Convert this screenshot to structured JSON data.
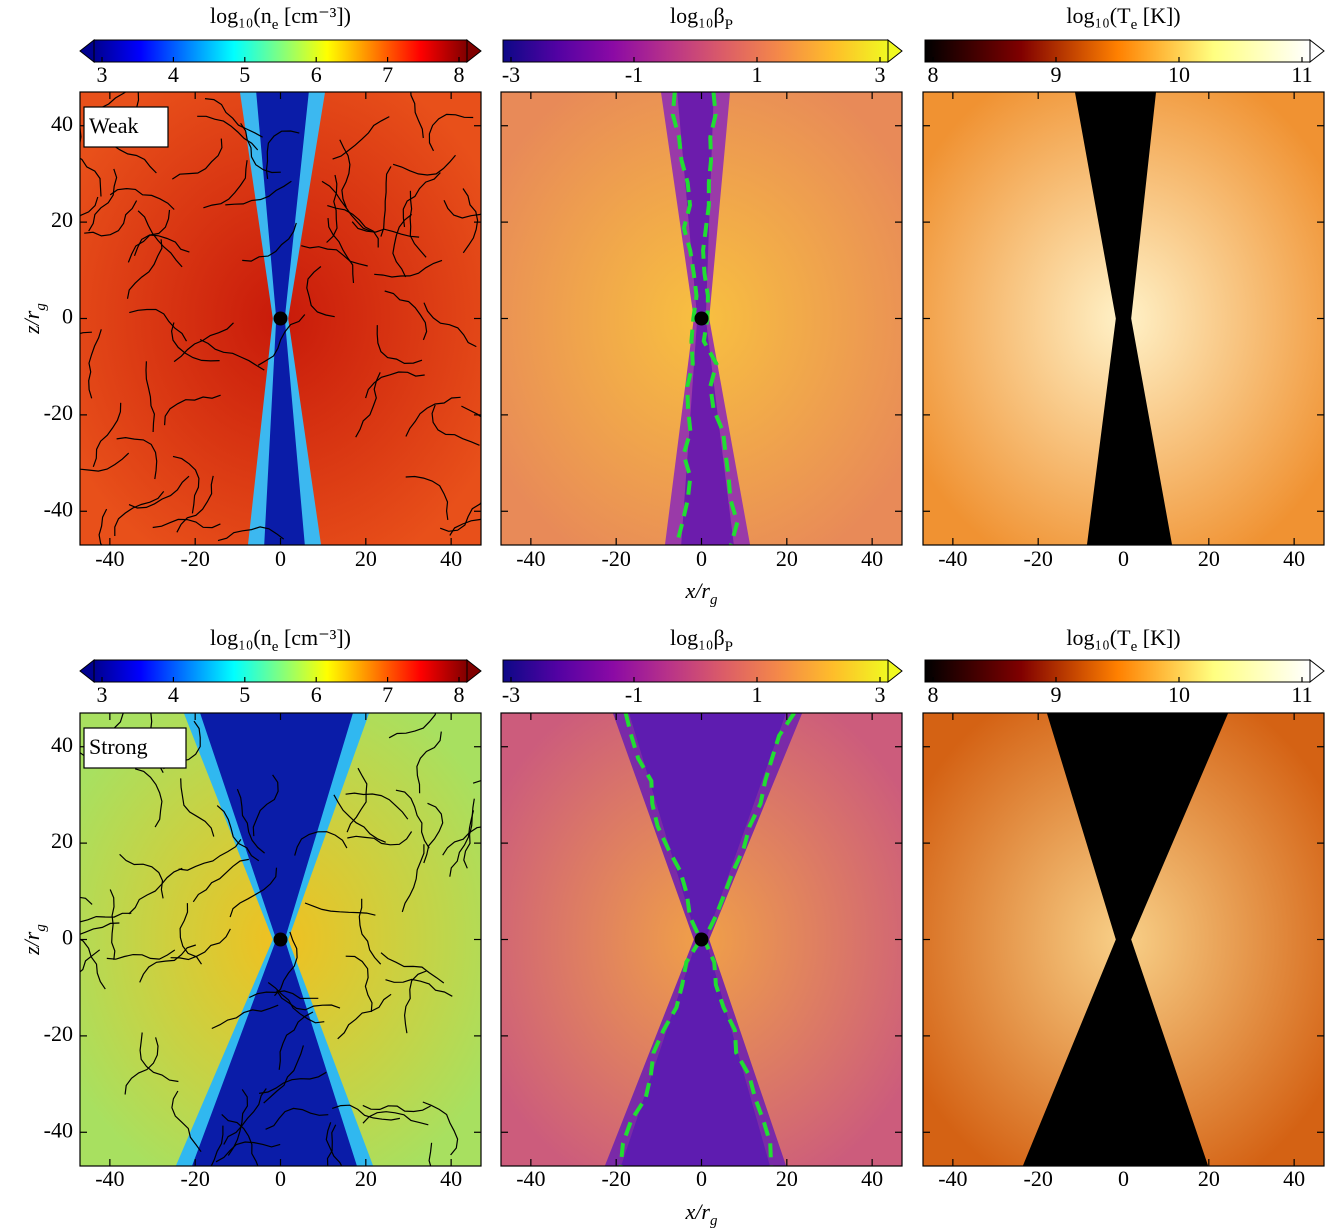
{
  "chart_data": [
    {
      "type": "heatmap",
      "annotation": "Weak",
      "ylabel": [
        {
          "text": "z/r"
        },
        {
          "text": "g",
          "sub": true
        }
      ],
      "colorbar": {
        "label": [
          {
            "text": "log₁₀(n"
          },
          {
            "text": "e",
            "sub": true
          },
          {
            "text": " [cm⁻³])"
          }
        ],
        "lim": [
          3,
          8
        ],
        "ticks": [
          3,
          4,
          5,
          6,
          7,
          8
        ],
        "extend": "both",
        "colors": [
          "#00008f",
          "#0000ff",
          "#0080ff",
          "#00ffff",
          "#80ff80",
          "#ffff00",
          "#ff8000",
          "#ff0000",
          "#800000"
        ]
      },
      "xlim": [
        -47,
        47
      ],
      "ylim": [
        -47,
        47
      ],
      "xticks": [
        -40,
        -20,
        0,
        20,
        40
      ],
      "yticks": [
        -40,
        -20,
        0,
        20,
        40
      ]
    },
    {
      "type": "heatmap",
      "xlabel": [
        {
          "text": "x/r"
        },
        {
          "text": "g",
          "sub": true
        }
      ],
      "colorbar": {
        "label": [
          {
            "text": "log₁₀β"
          },
          {
            "text": "P",
            "sub": true
          }
        ],
        "lim": [
          -3,
          3
        ],
        "ticks": [
          -3,
          -1,
          1,
          3
        ],
        "extend": "max",
        "colors": [
          "#0d0887",
          "#5302a3",
          "#8b0aa5",
          "#b83289",
          "#db5c68",
          "#f48849",
          "#febd2a",
          "#f0f921"
        ]
      },
      "xlim": [
        -47,
        47
      ],
      "ylim": [
        -47,
        47
      ],
      "xticks": [
        -40,
        -20,
        0,
        20,
        40
      ],
      "yticks": [
        -40,
        -20,
        0,
        20,
        40
      ]
    },
    {
      "type": "heatmap",
      "colorbar": {
        "label": [
          {
            "text": "log₁₀(T"
          },
          {
            "text": "e",
            "sub": true
          },
          {
            "text": " [K])"
          }
        ],
        "lim": [
          8,
          11
        ],
        "ticks": [
          8,
          9,
          10,
          11
        ],
        "extend": "max",
        "colors": [
          "#000000",
          "#800000",
          "#ff8000",
          "#ffff80",
          "#ffffff"
        ]
      },
      "xlim": [
        -47,
        47
      ],
      "ylim": [
        -47,
        47
      ],
      "xticks": [
        -40,
        -20,
        0,
        20,
        40
      ],
      "yticks": [
        -40,
        -20,
        0,
        20,
        40
      ]
    },
    {
      "type": "heatmap",
      "annotation": "Strong",
      "ylabel": [
        {
          "text": "z/r"
        },
        {
          "text": "g",
          "sub": true
        }
      ],
      "colorbar": {
        "label": [
          {
            "text": "log₁₀(n"
          },
          {
            "text": "e",
            "sub": true
          },
          {
            "text": " [cm⁻³])"
          }
        ],
        "lim": [
          3,
          8
        ],
        "ticks": [
          3,
          4,
          5,
          6,
          7,
          8
        ],
        "extend": "both",
        "colors": [
          "#00008f",
          "#0000ff",
          "#0080ff",
          "#00ffff",
          "#80ff80",
          "#ffff00",
          "#ff8000",
          "#ff0000",
          "#800000"
        ]
      },
      "xlim": [
        -47,
        47
      ],
      "ylim": [
        -47,
        47
      ],
      "xticks": [
        -40,
        -20,
        0,
        20,
        40
      ],
      "yticks": [
        -40,
        -20,
        0,
        20,
        40
      ]
    },
    {
      "type": "heatmap",
      "xlabel": [
        {
          "text": "x/r"
        },
        {
          "text": "g",
          "sub": true
        }
      ],
      "colorbar": {
        "label": [
          {
            "text": "log₁₀β"
          },
          {
            "text": "P",
            "sub": true
          }
        ],
        "lim": [
          -3,
          3
        ],
        "ticks": [
          -3,
          -1,
          1,
          3
        ],
        "extend": "max",
        "colors": [
          "#0d0887",
          "#5302a3",
          "#8b0aa5",
          "#b83289",
          "#db5c68",
          "#f48849",
          "#febd2a",
          "#f0f921"
        ]
      },
      "xlim": [
        -47,
        47
      ],
      "ylim": [
        -47,
        47
      ],
      "xticks": [
        -40,
        -20,
        0,
        20,
        40
      ],
      "yticks": [
        -40,
        -20,
        0,
        20,
        40
      ]
    },
    {
      "type": "heatmap",
      "colorbar": {
        "label": [
          {
            "text": "log₁₀(T"
          },
          {
            "text": "e",
            "sub": true
          },
          {
            "text": " [K])"
          }
        ],
        "lim": [
          8,
          11
        ],
        "ticks": [
          8,
          9,
          10,
          11
        ],
        "extend": "max",
        "colors": [
          "#000000",
          "#800000",
          "#ff8000",
          "#ffff80",
          "#ffffff"
        ]
      },
      "xlim": [
        -47,
        47
      ],
      "ylim": [
        -47,
        47
      ],
      "xticks": [
        -40,
        -20,
        0,
        20,
        40
      ],
      "yticks": [
        -40,
        -20,
        0,
        20,
        40
      ]
    }
  ]
}
